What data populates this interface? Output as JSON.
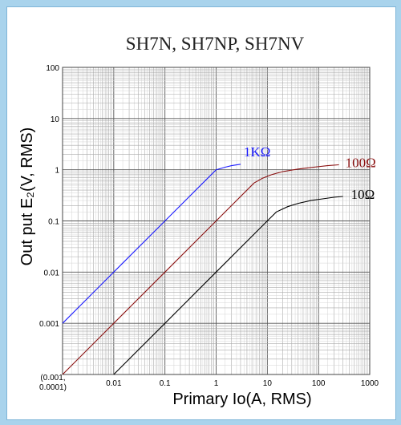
{
  "chart_data": {
    "type": "line",
    "title": "SH7N, SH7NP, SH7NV",
    "xlabel": "Primary Io(A, RMS)",
    "ylabel": "Out put E₂(V, RMS)",
    "x_scale": "log",
    "y_scale": "log",
    "xlim": [
      0.001,
      1000
    ],
    "ylim": [
      0.0001,
      100
    ],
    "grid": true,
    "x_ticks": [
      {
        "value": 0.01,
        "label": "0.01"
      },
      {
        "value": 0.1,
        "label": "0.1"
      },
      {
        "value": 1,
        "label": "1"
      },
      {
        "value": 10,
        "label": "10"
      },
      {
        "value": 100,
        "label": "100"
      },
      {
        "value": 1000,
        "label": "1000"
      }
    ],
    "y_ticks": [
      {
        "value": 100,
        "label": "100"
      },
      {
        "value": 10,
        "label": "10"
      },
      {
        "value": 1,
        "label": "1"
      },
      {
        "value": 0.1,
        "label": "0.1"
      },
      {
        "value": 0.01,
        "label": "0.01"
      },
      {
        "value": 0.001,
        "label": "0.001"
      }
    ],
    "origin_label": [
      "(0.001,",
      "0.0001)"
    ],
    "series": [
      {
        "name": "1KΩ",
        "color": "#1a1aff",
        "points": [
          [
            0.001,
            0.001
          ],
          [
            0.01,
            0.01
          ],
          [
            0.1,
            0.1
          ],
          [
            1,
            1
          ],
          [
            1.5,
            1.12
          ],
          [
            2,
            1.2
          ],
          [
            3,
            1.28
          ]
        ]
      },
      {
        "name": "100Ω",
        "color": "#8b1010",
        "points": [
          [
            0.001,
            0.0001
          ],
          [
            0.01,
            0.001
          ],
          [
            0.1,
            0.01
          ],
          [
            1,
            0.1
          ],
          [
            5.5,
            0.55
          ],
          [
            8,
            0.68
          ],
          [
            12,
            0.8
          ],
          [
            20,
            0.92
          ],
          [
            40,
            1.03
          ],
          [
            80,
            1.12
          ],
          [
            150,
            1.2
          ],
          [
            250,
            1.25
          ]
        ]
      },
      {
        "name": "10Ω",
        "color": "#000000",
        "points": [
          [
            0.01,
            0.0001
          ],
          [
            0.1,
            0.001
          ],
          [
            1,
            0.01
          ],
          [
            10,
            0.1
          ],
          [
            15,
            0.15
          ],
          [
            25,
            0.19
          ],
          [
            40,
            0.22
          ],
          [
            70,
            0.25
          ],
          [
            120,
            0.27
          ],
          [
            200,
            0.29
          ],
          [
            300,
            0.3
          ]
        ]
      }
    ]
  }
}
